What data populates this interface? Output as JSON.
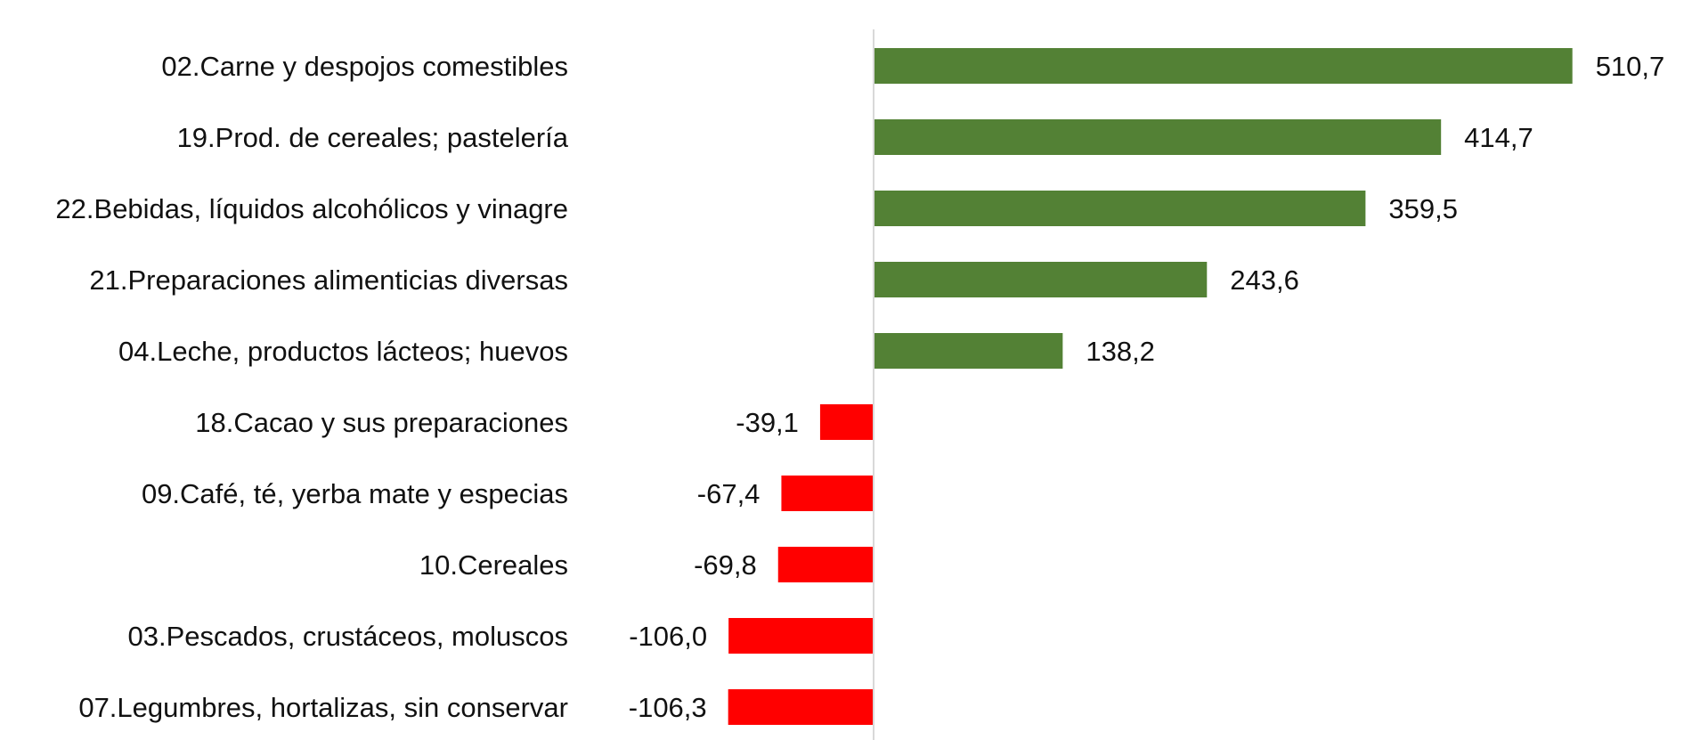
{
  "chart_data": {
    "type": "bar",
    "orientation": "horizontal",
    "categories": [
      "02.Carne y despojos comestibles",
      "19.Prod. de cereales; pastelería",
      "22.Bebidas, líquidos alcohólicos y vinagre",
      "21.Preparaciones alimenticias diversas",
      "04.Leche, productos lácteos; huevos",
      "18.Cacao y sus preparaciones",
      "09.Café, té, yerba mate y especias",
      "10.Cereales",
      "03.Pescados, crustáceos, moluscos",
      "07.Legumbres, hortalizas, sin conservar"
    ],
    "values": [
      510.7,
      414.7,
      359.5,
      243.6,
      138.2,
      -39.1,
      -67.4,
      -69.8,
      -106.0,
      -106.3
    ],
    "value_labels": [
      "510,7",
      "414,7",
      "359,5",
      "243,6",
      "138,2",
      "-39,1",
      "-67,4",
      "-69,8",
      "-106,0",
      "-106,3"
    ],
    "xlim": [
      -270,
      600
    ],
    "grid": false,
    "legend": "none",
    "colors": {
      "positive": "#538135",
      "negative": "#ff0000",
      "axis": "#d9d9d9"
    }
  }
}
